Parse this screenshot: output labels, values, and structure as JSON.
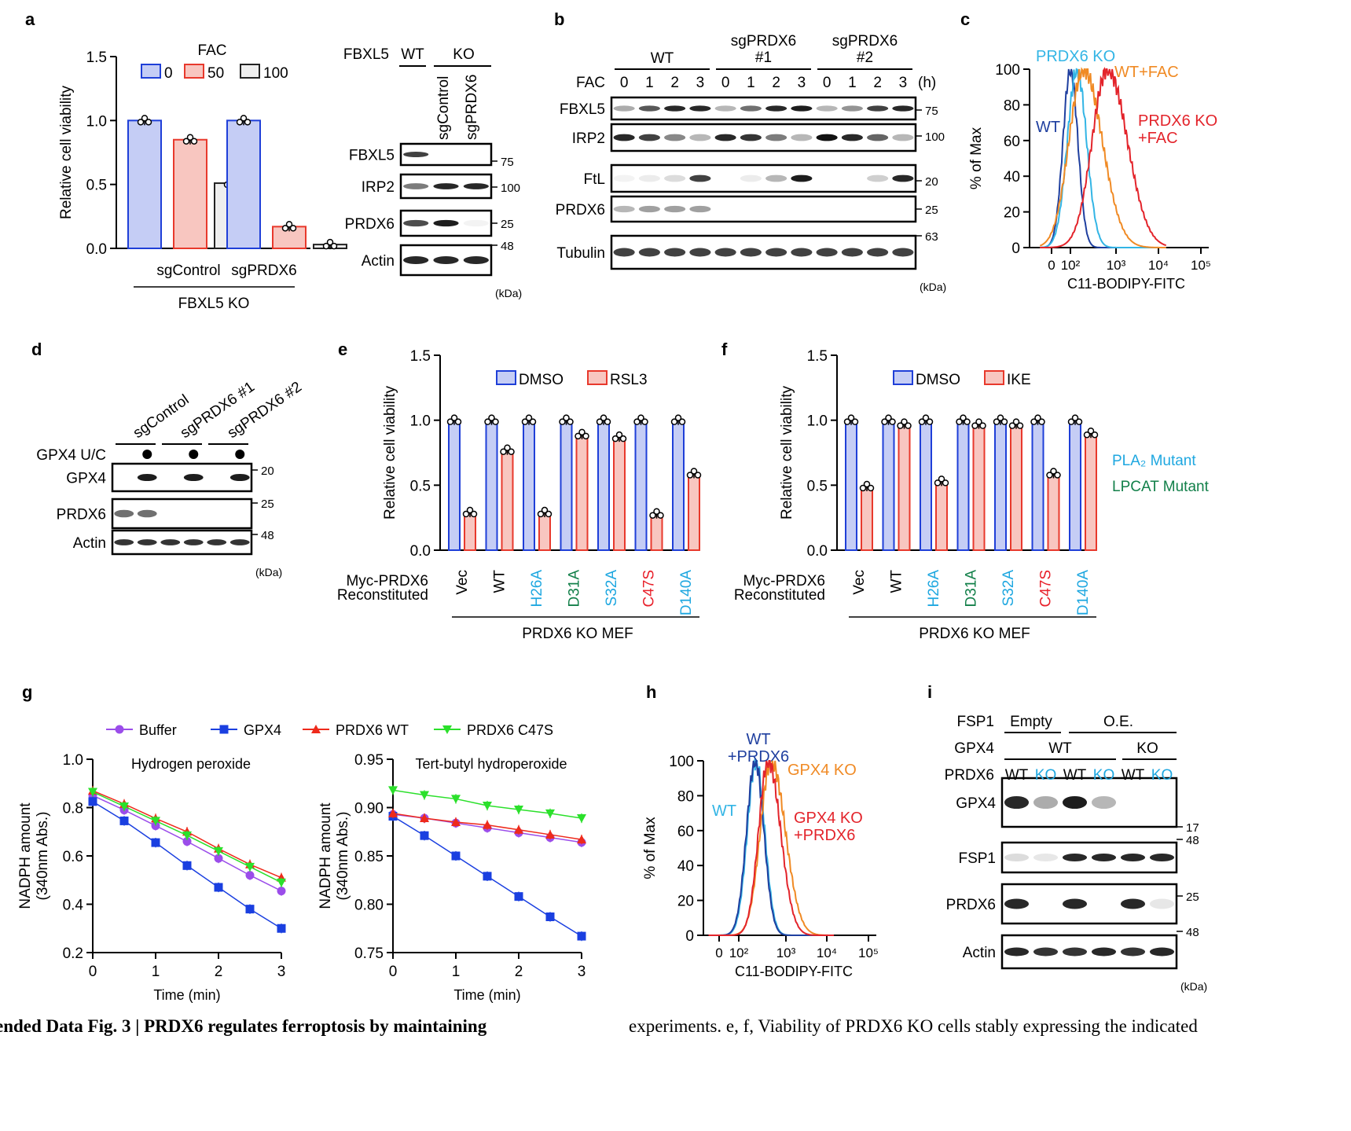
{
  "panel_labels": {
    "a": "a",
    "b": "b",
    "c": "c",
    "d": "d",
    "e": "e",
    "f": "f",
    "g": "g",
    "h": "h",
    "i": "i"
  },
  "caption": {
    "left": "ended Data Fig. 3 | PRDX6 regulates ferroptosis by maintaining",
    "right": "experiments. e, f, Viability of PRDX6 KO cells stably expressing the indicated"
  },
  "colors": {
    "blue_fill": "#c5cdf5",
    "blue_edge": "#1f3fd8",
    "red_fill": "#f8c6c0",
    "red_edge": "#e8392c",
    "gray_fill": "#eeeeee",
    "gray_edge": "#222222",
    "pla2": "#1ea7e0",
    "lpcat": "#13804a",
    "c47s": "#e8202a"
  },
  "chart_data": [
    {
      "id": "a",
      "type": "bar",
      "ylabel": "Relative cell viability",
      "ylim": [
        0,
        1.5
      ],
      "yticks": [
        "0.0",
        "0.5",
        "1.0",
        "1.5"
      ],
      "legend_title": "FAC",
      "categories": [
        "sgControl",
        "sgPRDX6"
      ],
      "group_label": "FBXL5 KO",
      "series": [
        {
          "name": "0",
          "values": [
            1.0,
            1.0
          ]
        },
        {
          "name": "50",
          "values": [
            0.85,
            0.17
          ]
        },
        {
          "name": "100",
          "values": [
            0.51,
            0.03
          ]
        }
      ]
    },
    {
      "id": "c",
      "type": "histogram",
      "ylabel": "% of Max",
      "xlabel": "C11-BODIPY-FITC",
      "yticks": [
        "0",
        "20",
        "40",
        "60",
        "80",
        "100"
      ],
      "xticks": [
        "0",
        "10²",
        "10³",
        "10⁴",
        "10⁵"
      ],
      "series": [
        {
          "name": "WT",
          "peak_log10": 2.0,
          "spread": 0.17,
          "color": "#1f3f9f"
        },
        {
          "name": "PRDX6 KO",
          "peak_log10": 2.15,
          "spread": 0.22,
          "color": "#33b5e5"
        },
        {
          "name": "WT+FAC",
          "peak_log10": 2.3,
          "spread": 0.33,
          "color": "#f08a24"
        },
        {
          "name": "PRDX6 KO\n+FAC",
          "peak_log10": 2.85,
          "spread": 0.35,
          "color": "#e3242b"
        }
      ]
    },
    {
      "id": "e",
      "type": "bar",
      "ylabel": "Relative cell viability",
      "ylim": [
        0,
        1.5
      ],
      "yticks": [
        "0.0",
        "0.5",
        "1.0",
        "1.5"
      ],
      "row_label": [
        "Myc-PRDX6",
        "Reconstituted"
      ],
      "group_label": "PRDX6 KO MEF",
      "categories": [
        "Vec",
        "WT",
        "H26A",
        "D31A",
        "S32A",
        "C47S",
        "D140A"
      ],
      "category_colors": [
        "#000000",
        "#000000",
        "#1ea7e0",
        "#13804a",
        "#1ea7e0",
        "#e8202a",
        "#1ea7e0"
      ],
      "series": [
        {
          "name": "DMSO",
          "values": [
            1.0,
            1.0,
            1.0,
            1.0,
            1.0,
            1.0,
            1.0
          ]
        },
        {
          "name": "RSL3",
          "values": [
            0.29,
            0.77,
            0.29,
            0.89,
            0.87,
            0.28,
            0.59
          ]
        }
      ]
    },
    {
      "id": "f",
      "type": "bar",
      "ylabel": "Relative cell viability",
      "ylim": [
        0,
        1.5
      ],
      "yticks": [
        "0.0",
        "0.5",
        "1.0",
        "1.5"
      ],
      "row_label": [
        "Myc-PRDX6",
        "Reconstituted"
      ],
      "group_label": "PRDX6 KO MEF",
      "categories": [
        "Vec",
        "WT",
        "H26A",
        "D31A",
        "S32A",
        "C47S",
        "D140A"
      ],
      "category_colors": [
        "#000000",
        "#000000",
        "#1ea7e0",
        "#13804a",
        "#1ea7e0",
        "#e8202a",
        "#1ea7e0"
      ],
      "series": [
        {
          "name": "DMSO",
          "values": [
            1.0,
            1.0,
            1.0,
            1.0,
            1.0,
            1.0,
            1.0
          ]
        },
        {
          "name": "IKE",
          "values": [
            0.49,
            0.97,
            0.53,
            0.97,
            0.97,
            0.59,
            0.9
          ]
        }
      ],
      "annotations": [
        "PLA₂ Mutant",
        "LPCAT Mutant"
      ]
    },
    {
      "id": "g-left",
      "type": "line",
      "title": "Hydrogen peroxide",
      "xlabel": "Time (min)",
      "ylabel": [
        "NADPH amount",
        "(340nm Abs.)"
      ],
      "ylim": [
        0.2,
        1.0
      ],
      "yticks": [
        "0.2",
        "0.4",
        "0.6",
        "0.8",
        "1.0"
      ],
      "xticks": [
        "0",
        "1",
        "2",
        "3"
      ],
      "x": [
        0,
        0.5,
        1,
        1.5,
        2,
        2.5,
        3
      ],
      "series": [
        {
          "name": "Buffer",
          "color": "#9b4dea",
          "marker": "circle",
          "values": [
            0.85,
            0.79,
            0.725,
            0.66,
            0.59,
            0.52,
            0.455
          ]
        },
        {
          "name": "GPX4",
          "color": "#1a3fe0",
          "marker": "square",
          "values": [
            0.825,
            0.745,
            0.655,
            0.56,
            0.47,
            0.38,
            0.3
          ]
        },
        {
          "name": "PRDX6 WT",
          "color": "#ee2a1b",
          "marker": "triangle-up",
          "values": [
            0.87,
            0.815,
            0.755,
            0.7,
            0.63,
            0.565,
            0.51
          ]
        },
        {
          "name": "PRDX6 C47S",
          "color": "#2be02b",
          "marker": "triangle-down",
          "values": [
            0.865,
            0.805,
            0.745,
            0.685,
            0.62,
            0.555,
            0.49
          ]
        }
      ]
    },
    {
      "id": "g-right",
      "type": "line",
      "title": "Tert-butyl hydroperoxide",
      "xlabel": "Time (min)",
      "ylabel": [
        "NADPH amount",
        "(340nm Abs.)"
      ],
      "ylim": [
        0.75,
        0.95
      ],
      "yticks": [
        "0.75",
        "0.80",
        "0.85",
        "0.90",
        "0.95"
      ],
      "xticks": [
        "0",
        "1",
        "2",
        "3"
      ],
      "x": [
        0,
        0.5,
        1,
        1.5,
        2,
        2.5,
        3
      ],
      "series": [
        {
          "name": "Buffer",
          "color": "#9b4dea",
          "marker": "circle",
          "values": [
            0.893,
            0.889,
            0.884,
            0.879,
            0.874,
            0.869,
            0.864
          ]
        },
        {
          "name": "GPX4",
          "color": "#1a3fe0",
          "marker": "square",
          "values": [
            0.891,
            0.871,
            0.85,
            0.829,
            0.808,
            0.787,
            0.767
          ]
        },
        {
          "name": "PRDX6 WT",
          "color": "#ee2a1b",
          "marker": "triangle-up",
          "values": [
            0.894,
            0.889,
            0.885,
            0.882,
            0.877,
            0.872,
            0.867
          ]
        },
        {
          "name": "PRDX6 C47S",
          "color": "#2be02b",
          "marker": "triangle-down",
          "values": [
            0.918,
            0.913,
            0.909,
            0.902,
            0.898,
            0.894,
            0.889
          ]
        }
      ]
    },
    {
      "id": "h",
      "type": "histogram",
      "ylabel": "% of Max",
      "xlabel": "C11-BODIPY-FITC",
      "yticks": [
        "0",
        "20",
        "40",
        "60",
        "80",
        "100"
      ],
      "xticks": [
        "0",
        "10²",
        "10³",
        "10⁴",
        "10⁵"
      ],
      "series": [
        {
          "name": "WT",
          "peak_log10": 2.4,
          "spread": 0.2,
          "color": "#33b5e5"
        },
        {
          "name": "WT\n+PRDX6",
          "peak_log10": 2.38,
          "spread": 0.2,
          "color": "#1f3f9f"
        },
        {
          "name": "GPX4 KO",
          "peak_log10": 2.75,
          "spread": 0.25,
          "color": "#f08a24"
        },
        {
          "name": "GPX4 KO\n+PRDX6",
          "peak_log10": 2.68,
          "spread": 0.22,
          "color": "#e3242b"
        }
      ]
    }
  ],
  "blots": {
    "a": {
      "header": {
        "gene": "FBXL5",
        "wt": "WT",
        "ko": "KO"
      },
      "lanes": [
        "sgControl",
        "sgPRDX6"
      ],
      "rows": [
        {
          "label": "FBXL5",
          "marker": "75",
          "bands": [
            0.8,
            0,
            0
          ]
        },
        {
          "label": "IRP2",
          "marker": "100",
          "bands": [
            0.55,
            0.9,
            0.9
          ]
        },
        {
          "label": "PRDX6",
          "marker": "25",
          "bands": [
            0.75,
            0.95,
            0.05
          ]
        },
        {
          "label": "Actin",
          "marker": "48",
          "bands": [
            0.9,
            0.9,
            0.9
          ]
        }
      ],
      "unit": "(kDa)"
    },
    "b": {
      "groups": [
        "WT",
        "sgPRDX6\n#1",
        "sgPRDX6\n#2"
      ],
      "fac_label": "FAC",
      "lanes": [
        "0",
        "1",
        "2",
        "3",
        "0",
        "1",
        "2",
        "3",
        "0",
        "1",
        "2",
        "3"
      ],
      "time_unit": "(h)",
      "rows": [
        {
          "label": "FBXL5",
          "marker": "75",
          "bands": [
            0.35,
            0.7,
            0.9,
            0.9,
            0.3,
            0.6,
            0.9,
            0.95,
            0.3,
            0.45,
            0.8,
            0.9
          ]
        },
        {
          "label": "IRP2",
          "marker": "100",
          "bands": [
            0.9,
            0.8,
            0.5,
            0.3,
            0.9,
            0.85,
            0.55,
            0.3,
            1,
            0.9,
            0.65,
            0.3
          ]
        },
        {
          "label": "FtL",
          "marker": "20",
          "bands": [
            0.05,
            0.08,
            0.15,
            0.8,
            0,
            0.08,
            0.3,
            0.95,
            0,
            0,
            0.2,
            0.9
          ]
        },
        {
          "label": "PRDX6",
          "marker": "25",
          "bands": [
            0.3,
            0.4,
            0.4,
            0.4,
            0,
            0,
            0,
            0,
            0,
            0,
            0,
            0
          ]
        },
        {
          "label": "Tubulin",
          "marker": "63",
          "bands": [
            0.8,
            0.8,
            0.8,
            0.8,
            0.8,
            0.8,
            0.8,
            0.8,
            0.8,
            0.8,
            0.8,
            0.8
          ]
        }
      ],
      "unit": "(kDa)"
    },
    "d": {
      "lanes": [
        "sgControl",
        "sgPRDX6 #1",
        "sgPRDX6 #2"
      ],
      "uc_label": "GPX4 U/C",
      "uc": [
        false,
        true,
        false,
        true,
        false,
        true
      ],
      "rows": [
        {
          "label": "GPX4",
          "marker": "20",
          "bands": [
            0,
            0.95,
            0,
            0.95,
            0,
            0.95
          ]
        },
        {
          "label": "PRDX6",
          "marker": "25",
          "bands": [
            0.6,
            0.6,
            0,
            0,
            0,
            0
          ]
        },
        {
          "label": "Actin",
          "marker": "48",
          "bands": [
            0.85,
            0.85,
            0.85,
            0.85,
            0.85,
            0.85
          ]
        }
      ],
      "unit": "(kDa)"
    },
    "i": {
      "header_rows": [
        {
          "label": "FSP1",
          "groups": [
            "Empty",
            "O.E."
          ]
        },
        {
          "label": "GPX4",
          "groups": [
            "WT",
            "KO"
          ]
        }
      ],
      "prdx6_label": "PRDX6",
      "lanes": [
        "WT",
        "KO",
        "WT",
        "KO",
        "WT",
        "KO"
      ],
      "rows": [
        {
          "label": "GPX4",
          "marker": "17",
          "bands": [
            0.9,
            0.35,
            0.95,
            0.3,
            0,
            0
          ]
        },
        {
          "label": "FSP1",
          "marker": "48",
          "bands": [
            0.15,
            0.1,
            0.9,
            0.9,
            0.9,
            0.9
          ]
        },
        {
          "label": "PRDX6",
          "marker": "25",
          "bands": [
            0.9,
            0,
            0.9,
            0,
            0.9,
            0.1
          ]
        },
        {
          "label": "Actin",
          "marker": "48",
          "bands": [
            0.9,
            0.85,
            0.85,
            0.9,
            0.85,
            0.9
          ]
        }
      ],
      "unit": "(kDa)"
    }
  }
}
